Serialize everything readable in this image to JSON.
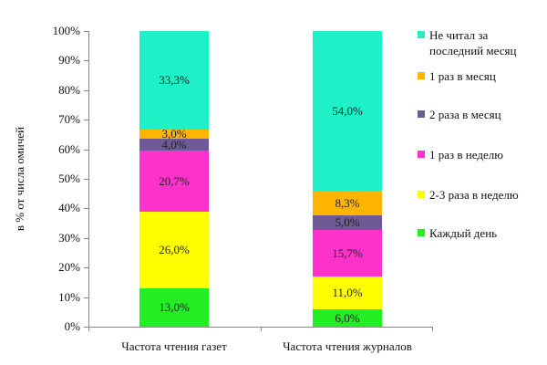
{
  "chart_data": {
    "type": "bar",
    "stacked": true,
    "title": "",
    "ylabel": "в % от числа омичей",
    "xlabel": "",
    "ylim": [
      0,
      100
    ],
    "yticks": [
      "0%",
      "10%",
      "20%",
      "30%",
      "40%",
      "50%",
      "60%",
      "70%",
      "80%",
      "90%",
      "100%"
    ],
    "categories": [
      "Частота чтения газет",
      "Частота чтения журналов"
    ],
    "series": [
      {
        "name": "Каждый день",
        "color": "#22ee22",
        "values": [
          13.0,
          6.0
        ],
        "labels": [
          "13,0%",
          "6,0%"
        ]
      },
      {
        "name": "2-3 раза в неделю",
        "color": "#ffff00",
        "values": [
          26.0,
          11.0
        ],
        "labels": [
          "26,0%",
          "11,0%"
        ]
      },
      {
        "name": "1 раз в неделю",
        "color": "#ff33cc",
        "values": [
          20.7,
          15.7
        ],
        "labels": [
          "20,7%",
          "15,7%"
        ]
      },
      {
        "name": "2 раза в месяц",
        "color": "#6e5a96",
        "values": [
          4.0,
          5.0
        ],
        "labels": [
          "4,0%",
          "5,0%"
        ]
      },
      {
        "name": "1 раз в месяц",
        "color": "#ffb400",
        "values": [
          3.0,
          8.3
        ],
        "labels": [
          "3,0%",
          "8,3%"
        ]
      },
      {
        "name": "Не читал за последний месяц",
        "color": "#1ef0c8",
        "values": [
          33.3,
          54.0
        ],
        "labels": [
          "33,3%",
          "54,0%"
        ]
      }
    ],
    "legend_position": "right",
    "grid": false
  },
  "legend": [
    {
      "label": "Не читал за последний месяц",
      "color": "#1ef0c8"
    },
    {
      "label": "1 раз в месяц",
      "color": "#ffb400"
    },
    {
      "label": "2 раза в месяц",
      "color": "#6e5a96"
    },
    {
      "label": "1 раз в неделю",
      "color": "#ff33cc"
    },
    {
      "label": "2-3 раза в неделю",
      "color": "#ffff00"
    },
    {
      "label": "Каждый день",
      "color": "#22ee22"
    }
  ]
}
